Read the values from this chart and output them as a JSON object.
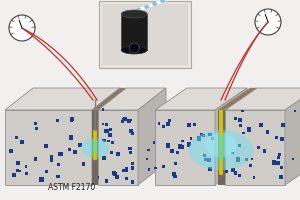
{
  "bg_color": "#f2f0ee",
  "concrete_front": "#d0ccc8",
  "concrete_top": "#dedad6",
  "concrete_right": "#b8b4b0",
  "concrete_edge": "#909090",
  "dot_color": "#1a3a8a",
  "moisture_cyan": "#70e0f0",
  "sensor_yellow": "#d4c418",
  "sensor_green": "#78d878",
  "cable_color": "#c03030",
  "gauge_color": "#404040",
  "label_text": "ASTM F2170",
  "label_fontsize": 5.5,
  "inset_bg": "#e8e4e0",
  "inset_border": "#b0a8a0"
}
